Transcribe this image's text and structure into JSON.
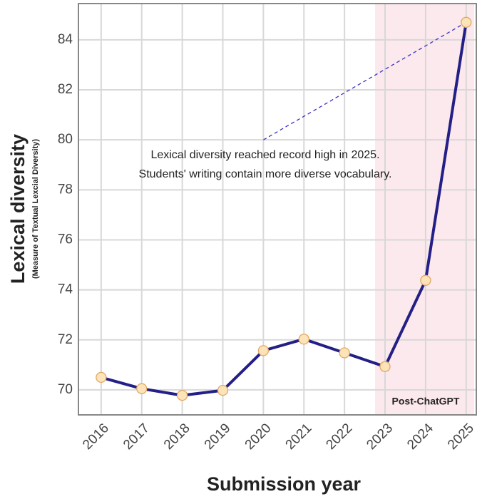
{
  "chart_data": {
    "type": "line",
    "x": [
      2016,
      2017,
      2018,
      2019,
      2020,
      2021,
      2022,
      2023,
      2024,
      2025
    ],
    "series": [
      {
        "color": "#241f86",
        "values": [
          70.5,
          70.05,
          69.78,
          69.98,
          71.57,
          72.03,
          71.48,
          70.93,
          74.38,
          84.7
        ]
      }
    ],
    "xlim": [
      2015.44,
      2025.25
    ],
    "ylim": [
      69,
      85.45
    ],
    "xticks": [
      2016,
      2017,
      2018,
      2019,
      2020,
      2021,
      2022,
      2023,
      2024,
      2025
    ],
    "yticks": [
      70,
      72,
      74,
      76,
      78,
      80,
      82,
      84
    ],
    "grid": true,
    "xlabel": "Submission year",
    "ylabel": "Lexical diversity",
    "ylabel_sub": "(Measure of Textual Lexcial Diversity)",
    "annotation": [
      "Lexical diversity reached record high in 2025.",
      "Students' writing contain more diverse vocabulary."
    ],
    "region_label": "Post-ChatGPT",
    "marker_fill": "#fde3b8",
    "marker_edge": "#e2a866",
    "region_color": "#fce9ed"
  }
}
